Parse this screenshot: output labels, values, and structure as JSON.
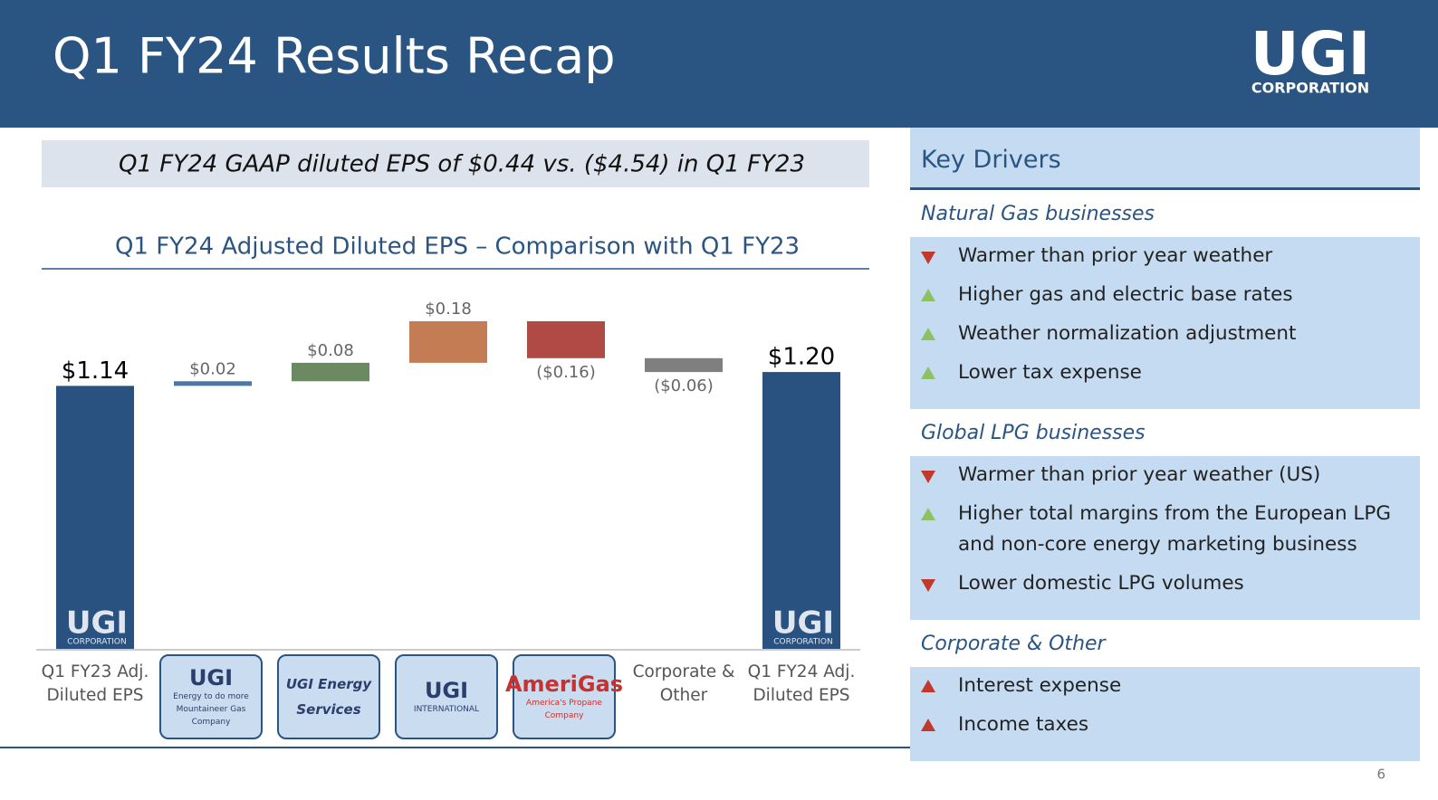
{
  "header": {
    "title": "Q1 FY24 Results Recap",
    "logo": "UGI",
    "logo_sub": "CORPORATION"
  },
  "gaap_note": "Q1 FY24 GAAP diluted EPS of $0.44 vs. ($4.54) in Q1 FY23",
  "chart_data": {
    "type": "waterfall",
    "title": "Q1 FY24 Adjusted Diluted EPS – Comparison with Q1 FY23",
    "categories": [
      "Q1 FY23 Adj. Diluted EPS",
      null,
      null,
      null,
      null,
      "Corporate & Other",
      "Q1 FY24 Adj. Diluted EPS"
    ],
    "measure": [
      "absolute",
      "relative",
      "relative",
      "relative",
      "relative",
      "relative",
      "total"
    ],
    "values": [
      1.14,
      0.02,
      0.08,
      0.18,
      -0.16,
      -0.06,
      1.2
    ],
    "value_labels": [
      "$1.14",
      "$0.02",
      "$0.08",
      "$0.18",
      "($0.16)",
      "($0.06)",
      "$1.20"
    ],
    "colors": [
      "#2a5281",
      "#4a78ab",
      "#6b8a5f",
      "#c47c55",
      "#b04a45",
      "#7f7f7f",
      "#2a5281"
    ]
  },
  "logos": [
    [
      "UGI",
      "Energy to do more",
      "Mountaineer Gas Company"
    ],
    [
      "UGI Energy Services"
    ],
    [
      "UGI",
      "INTERNATIONAL"
    ],
    [
      "AmeriGas",
      "America's Propane Company"
    ]
  ],
  "key_drivers": {
    "title": "Key Drivers",
    "sections": [
      {
        "title": "Natural Gas businesses",
        "items": [
          {
            "text": "Warmer than prior year weather",
            "direction": "down",
            "color": "#c0392b"
          },
          {
            "text": "Higher gas and electric base rates",
            "direction": "up",
            "color": "#8cc265"
          },
          {
            "text": "Weather normalization adjustment",
            "direction": "up",
            "color": "#8cc265"
          },
          {
            "text": "Lower tax expense",
            "direction": "up",
            "color": "#8cc265"
          }
        ]
      },
      {
        "title": "Global LPG businesses",
        "items": [
          {
            "text": "Warmer than prior year weather (US)",
            "direction": "down",
            "color": "#c0392b"
          },
          {
            "text": "Higher total margins from the European LPG and non-core energy marketing business",
            "direction": "up",
            "color": "#8cc265"
          },
          {
            "text": "Lower domestic LPG volumes",
            "direction": "down",
            "color": "#c0392b"
          }
        ]
      },
      {
        "title": "Corporate & Other",
        "items": [
          {
            "text": "Interest expense",
            "direction": "up",
            "color": "#c0392b"
          },
          {
            "text": "Income taxes",
            "direction": "up",
            "color": "#c0392b"
          }
        ]
      }
    ]
  },
  "page_number": 6
}
